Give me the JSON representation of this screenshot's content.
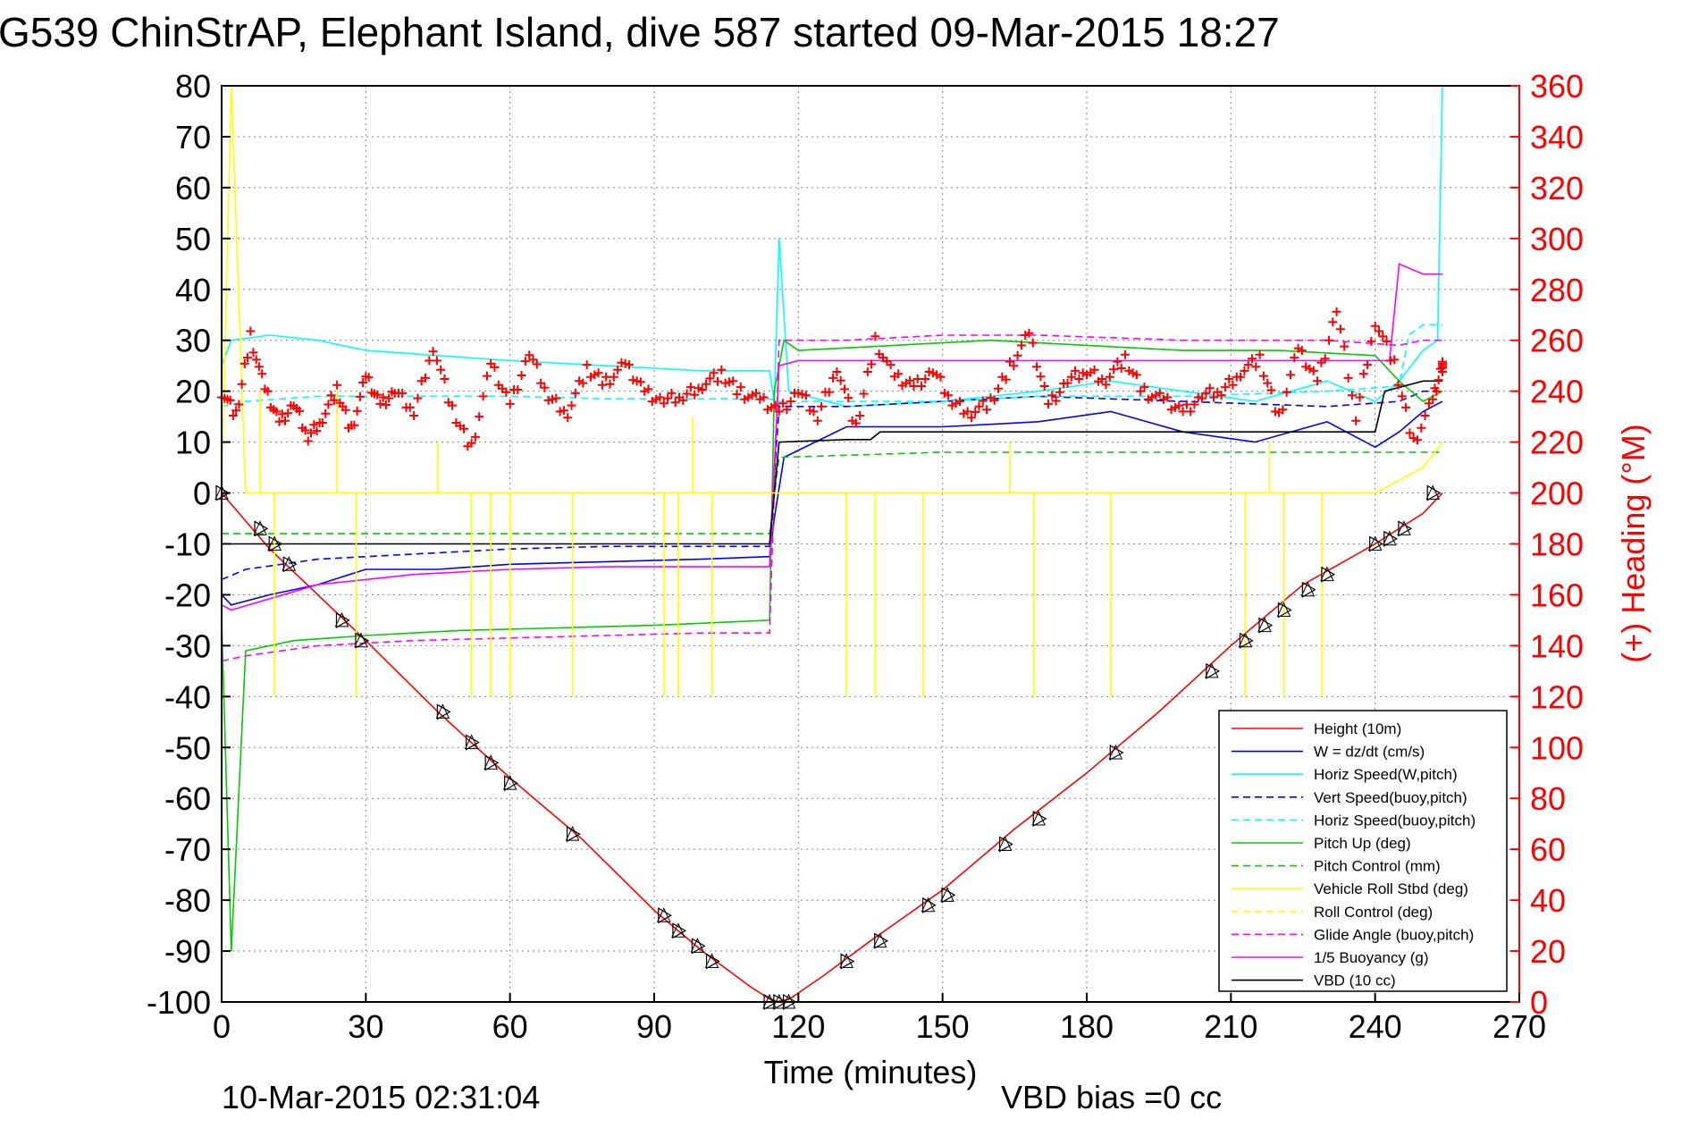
{
  "chart_data": {
    "type": "line",
    "title": "G539 ChinStrAP, Elephant Island, dive 587 started 09-Mar-2015 18:27",
    "xlabel": "Time (minutes)",
    "ylabel_right": "(+) Heading (°M)",
    "footer_left": "10-Mar-2015 02:31:04",
    "footer_right": "VBD bias =0 cc",
    "xlim": [
      0,
      270
    ],
    "ylim_left": [
      -100,
      80
    ],
    "ylim_right": [
      0,
      360
    ],
    "x_ticks": [
      "0",
      "30",
      "60",
      "90",
      "120",
      "150",
      "180",
      "210",
      "240",
      "270"
    ],
    "y_ticks_left": [
      "80",
      "70",
      "60",
      "50",
      "40",
      "30",
      "20",
      "10",
      "0",
      "-10",
      "-20",
      "-30",
      "-40",
      "-50",
      "-60",
      "-70",
      "-80",
      "-90",
      "-100"
    ],
    "y_ticks_right": [
      "360",
      "340",
      "320",
      "300",
      "280",
      "260",
      "240",
      "220",
      "200",
      "180",
      "160",
      "140",
      "120",
      "100",
      "80",
      "60",
      "40",
      "20",
      "0"
    ],
    "grid": true,
    "legend_position": "bottom-right",
    "legend": [
      {
        "name": "Height (10m)",
        "color": "#ff0000",
        "dash": "solid"
      },
      {
        "name": "W = dz/dt (cm/s)",
        "color": "#0000ff",
        "dash": "solid"
      },
      {
        "name": "Horiz Speed(W,pitch)",
        "color": "#00ffff",
        "dash": "solid"
      },
      {
        "name": "Vert Speed(buoy,pitch)",
        "color": "#0000ff",
        "dash": "dashed"
      },
      {
        "name": "Horiz Speed(buoy,pitch)",
        "color": "#00ffff",
        "dash": "dashed"
      },
      {
        "name": "Pitch Up (deg)",
        "color": "#00cc00",
        "dash": "solid"
      },
      {
        "name": "Pitch Control (mm)",
        "color": "#00cc00",
        "dash": "dashed"
      },
      {
        "name": "Vehicle Roll Stbd (deg)",
        "color": "#ffff00",
        "dash": "solid"
      },
      {
        "name": "Roll Control (deg)",
        "color": "#ffff00",
        "dash": "dashed"
      },
      {
        "name": "Glide Angle (buoy,pitch)",
        "color": "#ff00ff",
        "dash": "dashed"
      },
      {
        "name": "1/5 Buoyancy (g)",
        "color": "#ff00ff",
        "dash": "solid"
      },
      {
        "name": "VBD (10 cc)",
        "color": "#000000",
        "dash": "solid"
      }
    ],
    "series": [
      {
        "key": "height",
        "color": "#ff0000",
        "dash": "solid",
        "x": [
          0,
          10,
          20,
          30,
          45,
          60,
          75,
          90,
          100,
          110,
          115,
          118,
          125,
          135,
          150,
          165,
          180,
          195,
          210,
          225,
          240,
          250,
          254
        ],
        "y": [
          0,
          -11,
          -20,
          -29,
          -43,
          -56,
          -68,
          -82,
          -90,
          -97,
          -100,
          -99.5,
          -95,
          -88,
          -78,
          -66,
          -55,
          -43,
          -30,
          -18,
          -10,
          -4,
          0
        ]
      },
      {
        "key": "w",
        "color": "#0000ff",
        "dash": "solid",
        "x": [
          0,
          2,
          10,
          20,
          30,
          45,
          60,
          80,
          100,
          114,
          115,
          117,
          130,
          150,
          170,
          185,
          200,
          215,
          230,
          240,
          245,
          250,
          254
        ],
        "y": [
          -20,
          -22,
          -20,
          -18,
          -15,
          -15,
          -14,
          -13.5,
          -13,
          -12.5,
          -5,
          7,
          13,
          13,
          14,
          16,
          12,
          10,
          14,
          9,
          12,
          16,
          18
        ]
      },
      {
        "key": "horiz_w",
        "color": "#00ffff",
        "dash": "solid",
        "x": [
          0,
          2,
          10,
          20,
          30,
          45,
          60,
          80,
          100,
          114,
          115,
          116,
          118,
          130,
          150,
          170,
          185,
          200,
          215,
          230,
          240,
          245,
          250,
          253,
          254
        ],
        "y": [
          25,
          30,
          31,
          30,
          28,
          27,
          26,
          25,
          24,
          24,
          18,
          50,
          20,
          17,
          18,
          20,
          22,
          20,
          18,
          22,
          18,
          22,
          28,
          30,
          80
        ]
      },
      {
        "key": "vert_buoy",
        "color": "#0000ff",
        "dash": "dashed",
        "x": [
          0,
          5,
          20,
          40,
          60,
          80,
          100,
          114,
          116,
          130,
          150,
          170,
          200,
          230,
          245,
          250,
          254
        ],
        "y": [
          -17,
          -15,
          -13,
          -12,
          -11,
          -10.5,
          -10.5,
          -10.5,
          17,
          17,
          18,
          19,
          18,
          17,
          18,
          20,
          20
        ]
      },
      {
        "key": "horiz_buoy",
        "color": "#00ffff",
        "dash": "dashed",
        "x": [
          0,
          5,
          20,
          40,
          60,
          80,
          100,
          114,
          116,
          130,
          150,
          170,
          200,
          230,
          245,
          247,
          250,
          254
        ],
        "y": [
          17,
          18,
          19,
          19,
          19,
          18.5,
          18.5,
          18.5,
          18,
          18,
          18,
          19,
          19,
          20,
          21,
          31,
          33,
          33
        ]
      },
      {
        "key": "pitch_up",
        "color": "#00cc00",
        "dash": "solid",
        "x": [
          0,
          2,
          5,
          15,
          30,
          50,
          70,
          90,
          114,
          115,
          117,
          120,
          140,
          160,
          180,
          200,
          220,
          240,
          245,
          250,
          254
        ],
        "y": [
          -25,
          -90,
          -31,
          -29,
          -28,
          -27,
          -26.5,
          -26,
          -25,
          20,
          30,
          28,
          29,
          30,
          29,
          28,
          28,
          27,
          22,
          18,
          20
        ]
      },
      {
        "key": "pitch_ctrl",
        "color": "#00cc00",
        "dash": "dashed",
        "x": [
          0,
          2,
          114,
          116,
          150,
          200,
          254
        ],
        "y": [
          -8,
          -8,
          -8,
          7,
          8,
          8,
          8
        ]
      },
      {
        "key": "glide",
        "color": "#ff00ff",
        "dash": "dashed",
        "x": [
          0,
          5,
          20,
          40,
          60,
          80,
          100,
          114,
          116,
          130,
          150,
          170,
          200,
          230,
          245,
          250,
          254
        ],
        "y": [
          -33,
          -32,
          -30,
          -29,
          -28.5,
          -28,
          -27.5,
          -27.5,
          30,
          30,
          31,
          31,
          30,
          30,
          29,
          30,
          30
        ]
      },
      {
        "key": "buoyancy",
        "color": "#ff00ff",
        "dash": "solid",
        "x": [
          0,
          2,
          20,
          40,
          60,
          80,
          100,
          114,
          116,
          120,
          150,
          200,
          243,
          245,
          250,
          254
        ],
        "y": [
          -22,
          -23,
          -18,
          -16,
          -15,
          -14.5,
          -14.5,
          -14.5,
          25,
          26,
          26,
          26,
          26,
          45,
          43,
          43
        ]
      },
      {
        "key": "vbd",
        "color": "#000000",
        "dash": "solid",
        "x": [
          0,
          2,
          114,
          116,
          130,
          135,
          137,
          170,
          210,
          240,
          242,
          250,
          254
        ],
        "y": [
          -10,
          -10,
          -10,
          10,
          10.5,
          10.5,
          12,
          12,
          12,
          12,
          20,
          22,
          22
        ]
      },
      {
        "key": "roll",
        "color": "#ffff00",
        "dash": "solid",
        "x": [
          0,
          2,
          5,
          12,
          14,
          30,
          60,
          90,
          114,
          117,
          150,
          200,
          240,
          250,
          254
        ],
        "y": [
          0,
          80,
          0,
          0,
          0,
          0,
          0,
          0,
          0,
          0,
          0,
          0,
          0,
          5,
          10
        ]
      }
    ],
    "roll_spikes": [
      {
        "x": 11,
        "y": -40
      },
      {
        "x": 28,
        "y": -40
      },
      {
        "x": 52,
        "y": -40
      },
      {
        "x": 56,
        "y": -40
      },
      {
        "x": 60,
        "y": -40
      },
      {
        "x": 73,
        "y": -40
      },
      {
        "x": 92,
        "y": -40
      },
      {
        "x": 95,
        "y": -40
      },
      {
        "x": 102,
        "y": -40
      },
      {
        "x": 130,
        "y": -40
      },
      {
        "x": 136,
        "y": -40
      },
      {
        "x": 146,
        "y": -40
      },
      {
        "x": 169,
        "y": -40
      },
      {
        "x": 185,
        "y": -40
      },
      {
        "x": 213,
        "y": -40
      },
      {
        "x": 221,
        "y": -40
      },
      {
        "x": 229,
        "y": -40
      },
      {
        "x": 8,
        "y": 20
      },
      {
        "x": 24,
        "y": 20
      },
      {
        "x": 45,
        "y": 10
      },
      {
        "x": 98,
        "y": 15
      },
      {
        "x": 164,
        "y": 10
      },
      {
        "x": 218,
        "y": 10
      }
    ],
    "heading": {
      "axis": "right",
      "color": "#ff0000",
      "x": [
        0,
        3,
        6,
        9,
        12,
        15,
        18,
        21,
        24,
        27,
        30,
        33,
        36,
        40,
        44,
        48,
        52,
        56,
        60,
        64,
        68,
        72,
        76,
        80,
        84,
        88,
        92,
        96,
        100,
        104,
        108,
        112,
        116,
        120,
        124,
        128,
        132,
        136,
        140,
        144,
        148,
        152,
        156,
        160,
        164,
        168,
        172,
        176,
        180,
        184,
        188,
        192,
        196,
        200,
        204,
        208,
        212,
        216,
        220,
        224,
        228,
        232,
        236,
        240,
        244,
        248,
        252,
        254
      ],
      "y": [
        240,
        230,
        262,
        240,
        228,
        235,
        222,
        230,
        240,
        225,
        245,
        235,
        240,
        232,
        258,
        232,
        218,
        250,
        235,
        255,
        238,
        232,
        248,
        244,
        250,
        240,
        236,
        238,
        243,
        246,
        240,
        236,
        232,
        240,
        230,
        250,
        225,
        260,
        245,
        242,
        248,
        236,
        232,
        235,
        250,
        262,
        235,
        244,
        248,
        245,
        252,
        240,
        236,
        232,
        238,
        240,
        248,
        252,
        230,
        256,
        244,
        272,
        230,
        268,
        250,
        220,
        236,
        250
      ]
    },
    "markers": {
      "triangle_x": [
        0,
        8,
        11,
        14,
        25,
        29,
        46,
        52,
        56,
        60,
        73,
        92,
        95,
        99,
        102,
        114,
        116,
        118,
        130,
        137,
        147,
        151,
        163,
        170,
        186,
        206,
        213,
        217,
        221,
        226,
        230,
        240,
        243,
        246,
        252
      ],
      "triangle_y": [
        0,
        -7,
        -10,
        -14,
        -25,
        -29,
        -43,
        -49,
        -53,
        -57,
        -67,
        -83,
        -86,
        -89,
        -92,
        -100,
        -100,
        -100,
        -92,
        -88,
        -81,
        -79,
        -69,
        -64,
        -51,
        -35,
        -29,
        -26,
        -23,
        -19,
        -16,
        -10,
        -9,
        -7,
        0
      ]
    }
  }
}
